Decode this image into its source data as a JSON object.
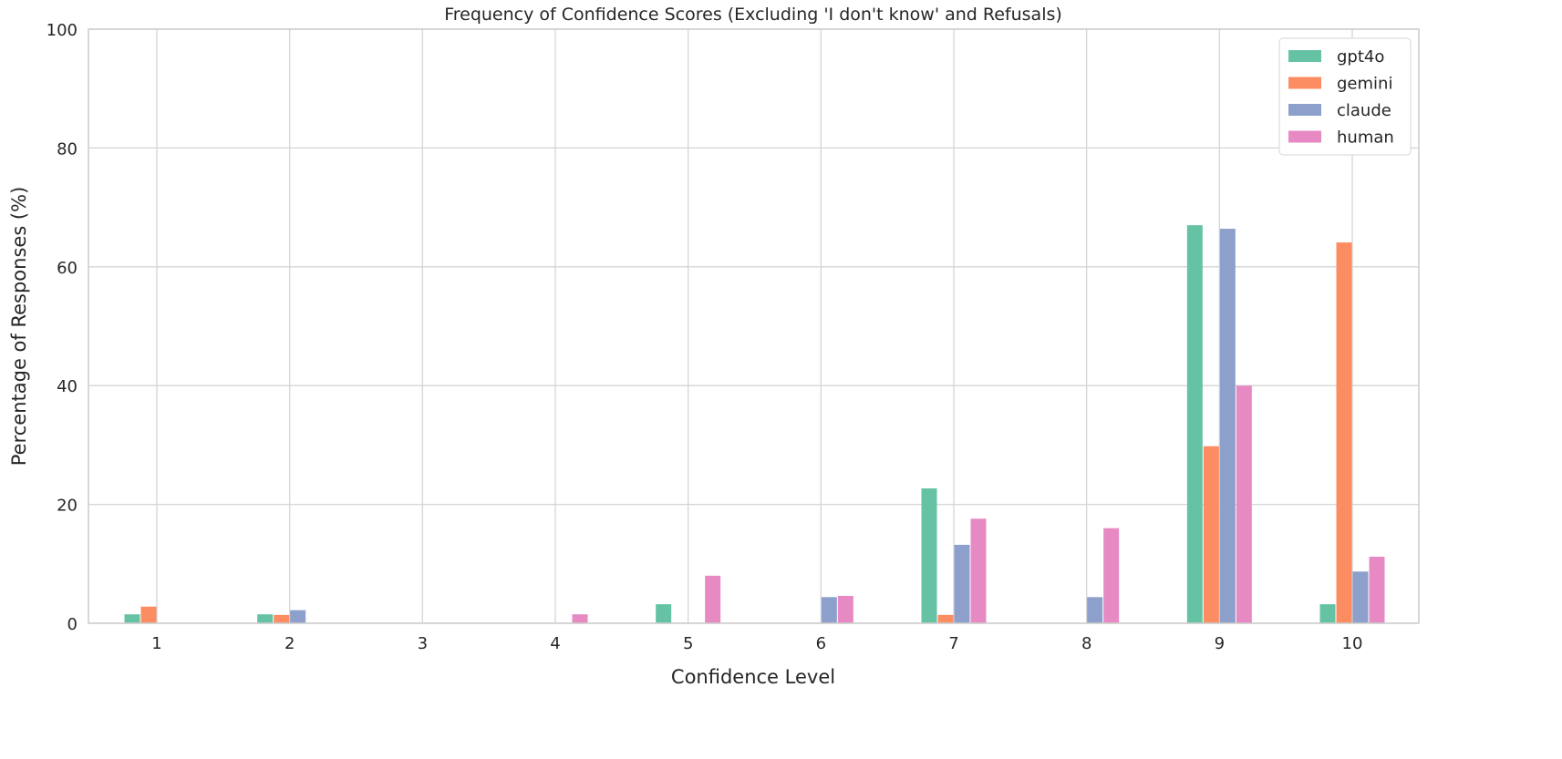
{
  "chart_data": {
    "type": "bar",
    "title": "Frequency of Confidence Scores (Excluding 'I don't know' and Refusals)",
    "xlabel": "Confidence Level",
    "ylabel": "Percentage of Responses (%)",
    "categories": [
      "1",
      "2",
      "3",
      "4",
      "5",
      "6",
      "7",
      "8",
      "9",
      "10"
    ],
    "ylim": [
      0,
      100
    ],
    "yticks": [
      "0",
      "20",
      "40",
      "60",
      "80",
      "100"
    ],
    "grid": true,
    "legend_position": "top-right",
    "series": [
      {
        "name": "gpt4o",
        "color": "#66c2a5",
        "values": [
          1.5,
          1.5,
          0,
          0,
          3.2,
          0,
          22.7,
          0,
          67.0,
          3.2
        ]
      },
      {
        "name": "gemini",
        "color": "#fc8d62",
        "values": [
          2.8,
          1.4,
          0,
          0,
          0,
          0,
          1.4,
          0,
          29.8,
          64.1
        ]
      },
      {
        "name": "claude",
        "color": "#8da0cb",
        "values": [
          0,
          2.2,
          0,
          0,
          0,
          4.4,
          13.2,
          4.4,
          66.4,
          8.7
        ]
      },
      {
        "name": "human",
        "color": "#e78ac3",
        "values": [
          0,
          0,
          0,
          1.5,
          8.0,
          4.6,
          17.6,
          16.0,
          40.0,
          11.2
        ]
      }
    ]
  }
}
